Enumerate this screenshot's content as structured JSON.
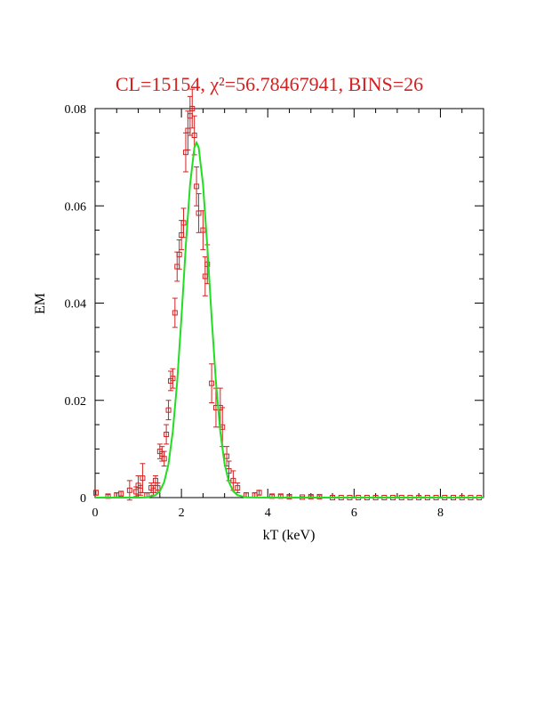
{
  "chart_data": {
    "type": "scatter",
    "title": "CL=15154, χ²=56.78467941, BINS=26",
    "xlabel": "kT (keV)",
    "ylabel": "EM",
    "xlim": [
      0,
      9
    ],
    "ylim": [
      0,
      0.08
    ],
    "xticks": [
      0,
      2,
      4,
      6,
      8
    ],
    "yticks": [
      0,
      0.02,
      0.04,
      0.06,
      0.08
    ],
    "xminor": [
      0.5,
      1,
      1.5,
      2.5,
      3,
      3.5,
      4.5,
      5,
      5.5,
      6.5,
      7,
      7.5,
      8.5
    ],
    "yminor": [
      0.005,
      0.01,
      0.015,
      0.025,
      0.03,
      0.035,
      0.045,
      0.05,
      0.055,
      0.065,
      0.07,
      0.075
    ],
    "series": [
      {
        "type": "scatter",
        "color": "#d42020",
        "x": [
          0.02,
          0.3,
          0.5,
          0.6,
          0.8,
          0.95,
          1.0,
          1.05,
          1.1,
          1.2,
          1.3,
          1.35,
          1.4,
          1.45,
          1.5,
          1.55,
          1.6,
          1.65,
          1.7,
          1.75,
          1.8,
          1.85,
          1.9,
          1.95,
          2.0,
          2.05,
          2.1,
          2.15,
          2.2,
          2.25,
          2.3,
          2.35,
          2.4,
          2.5,
          2.55,
          2.6,
          2.7,
          2.8,
          2.9,
          2.95,
          3.05,
          3.1,
          3.2,
          3.3,
          3.5,
          3.7,
          3.8,
          4.1,
          4.3,
          4.5,
          4.8,
          5.0,
          5.2,
          5.5,
          5.7,
          5.9,
          6.1,
          6.3,
          6.5,
          6.7,
          6.9,
          7.1,
          7.3,
          7.5,
          7.7,
          7.9,
          8.1,
          8.3,
          8.5,
          8.7,
          8.9
        ],
        "values": [
          0.001,
          0.0003,
          0.0005,
          0.0008,
          0.0015,
          0.0012,
          0.0025,
          0.0015,
          0.004,
          0.0005,
          0.002,
          0.0015,
          0.0035,
          0.002,
          0.0095,
          0.009,
          0.008,
          0.013,
          0.018,
          0.024,
          0.0245,
          0.038,
          0.0475,
          0.05,
          0.054,
          0.0565,
          0.071,
          0.0755,
          0.0785,
          0.08,
          0.0745,
          0.064,
          0.0585,
          0.055,
          0.0455,
          0.048,
          0.0235,
          0.0185,
          0.0185,
          0.0145,
          0.0085,
          0.0055,
          0.0035,
          0.002,
          0.0005,
          0.0005,
          0.001,
          0.0003,
          0.0003,
          0.0002,
          0.0001,
          0.0002,
          0.0002,
          0,
          0,
          0,
          0,
          0,
          0,
          0,
          0,
          0,
          0,
          0,
          0,
          0,
          0,
          0,
          0,
          0,
          0
        ],
        "errors": [
          0.0005,
          0.0003,
          0.0005,
          0.0005,
          0.002,
          0.001,
          0.002,
          0.001,
          0.003,
          0.0005,
          0.001,
          0.001,
          0.001,
          0.001,
          0.0015,
          0.0015,
          0.0015,
          0.002,
          0.002,
          0.002,
          0.002,
          0.003,
          0.003,
          0.003,
          0.003,
          0.003,
          0.004,
          0.004,
          0.004,
          0.004,
          0.004,
          0.004,
          0.004,
          0.004,
          0.004,
          0.004,
          0.004,
          0.004,
          0.004,
          0.004,
          0.002,
          0.002,
          0.002,
          0.001,
          0.0005,
          0.0005,
          0.0005,
          0.0003,
          0.0003,
          0.0002,
          0.0001,
          0.0002,
          0.0002,
          0,
          0,
          0,
          0,
          0,
          0,
          0,
          0,
          0,
          0,
          0,
          0,
          0,
          0,
          0,
          0,
          0,
          0
        ]
      },
      {
        "type": "line",
        "color": "#22dd22",
        "x": [
          0,
          1.0,
          1.2,
          1.4,
          1.5,
          1.6,
          1.7,
          1.8,
          1.9,
          2.0,
          2.1,
          2.2,
          2.3,
          2.35,
          2.4,
          2.5,
          2.6,
          2.7,
          2.8,
          2.9,
          3.0,
          3.1,
          3.2,
          3.3,
          3.5,
          4,
          9
        ],
        "values": [
          0,
          0,
          5e-05,
          0.0005,
          0.0013,
          0.0032,
          0.0069,
          0.0136,
          0.0237,
          0.037,
          0.0516,
          0.0644,
          0.072,
          0.073,
          0.072,
          0.0644,
          0.0516,
          0.037,
          0.0237,
          0.0136,
          0.0069,
          0.0032,
          0.0013,
          0.0005,
          5e-05,
          0,
          0
        ]
      }
    ]
  }
}
